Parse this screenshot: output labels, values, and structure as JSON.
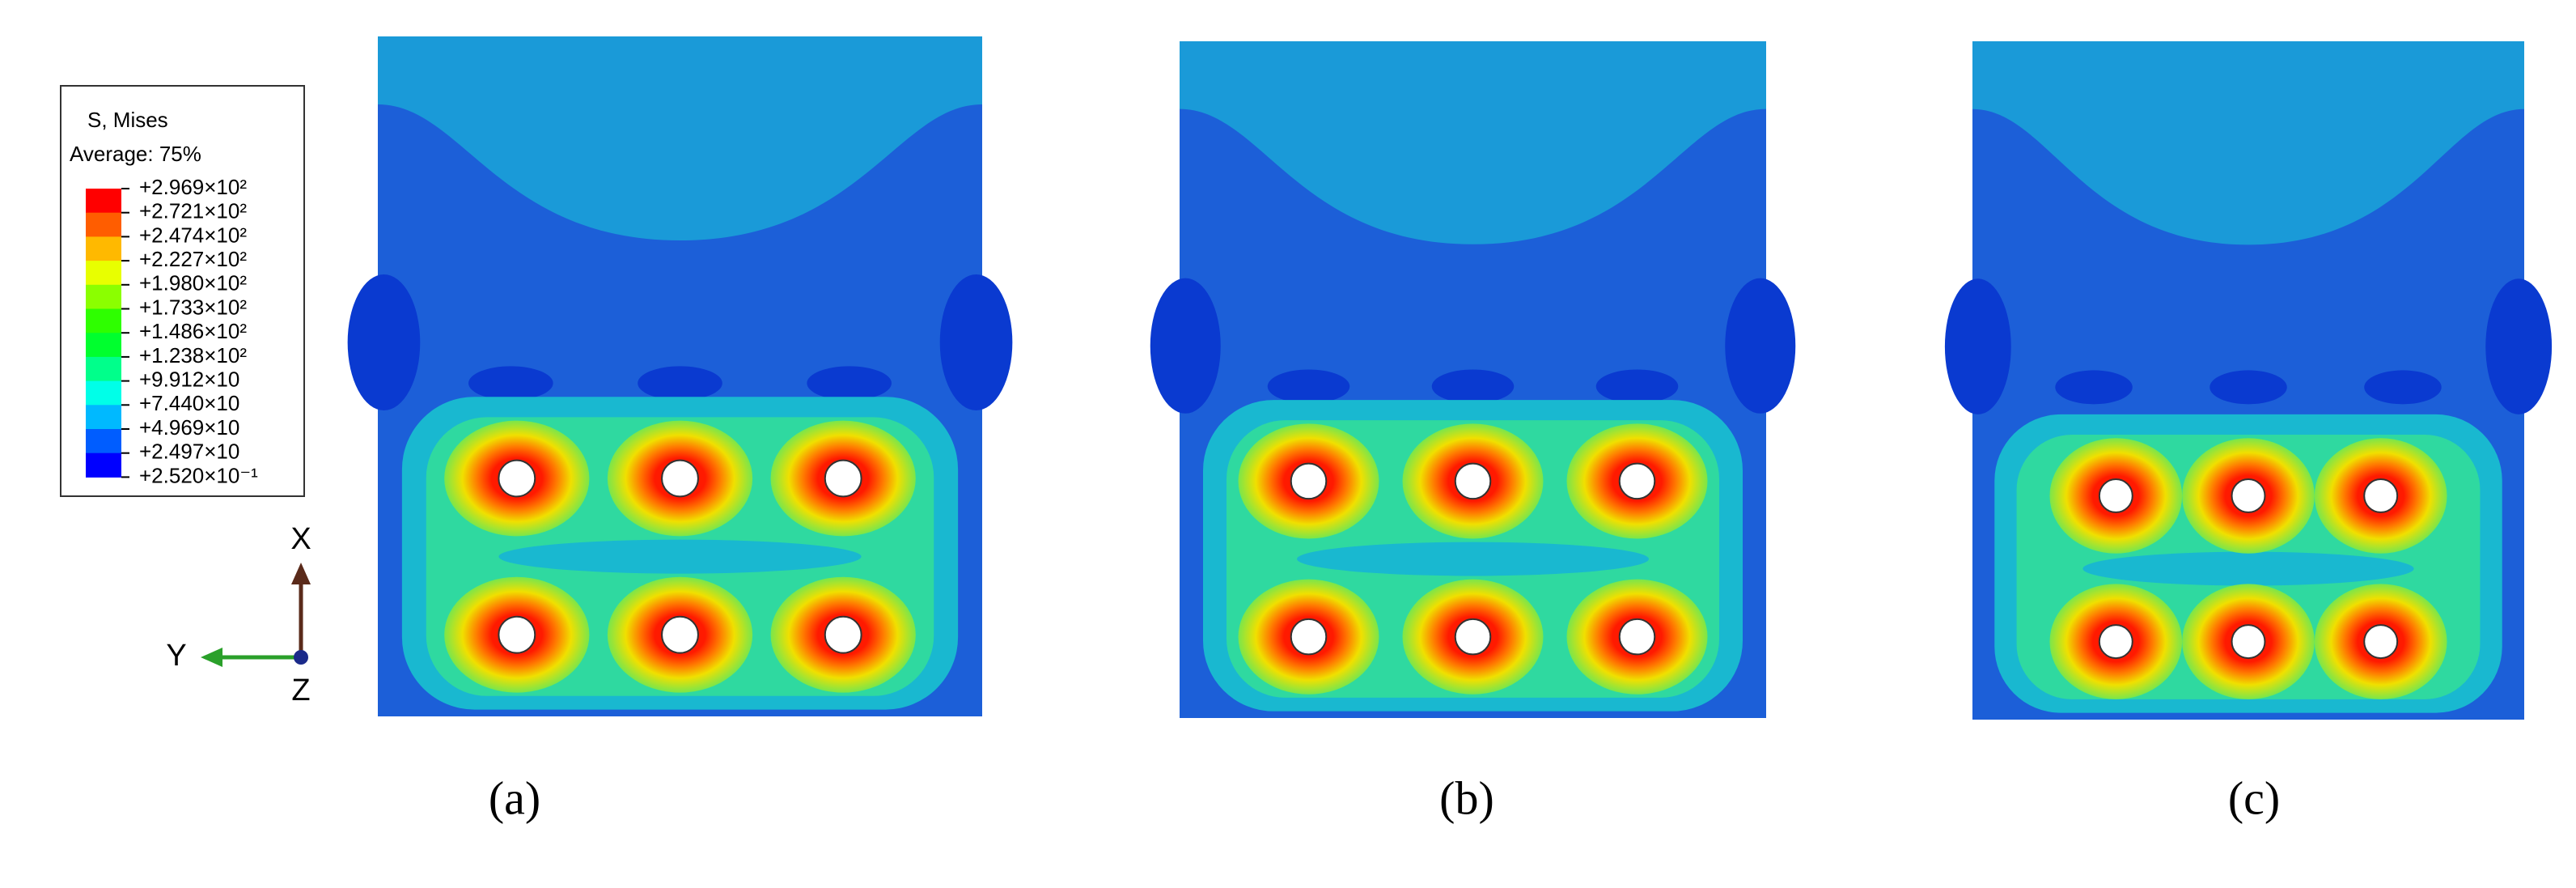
{
  "legend": {
    "title": "S, Mises",
    "subtitle": "Average: 75%",
    "labels": [
      "+2.969×10²",
      "+2.721×10²",
      "+2.474×10²",
      "+2.227×10²",
      "+1.980×10²",
      "+1.733×10²",
      "+1.486×10²",
      "+1.238×10²",
      "+9.912×10",
      "+7.440×10",
      "+4.969×10",
      "+2.497×10",
      "+2.520×10⁻¹"
    ],
    "colors": [
      "#ff0000",
      "#ff5d00",
      "#ffb900",
      "#e8ff00",
      "#8bff00",
      "#2eff00",
      "#00ff2e",
      "#00ff8b",
      "#00ffe8",
      "#00b9ff",
      "#005dff",
      "#0000ff"
    ]
  },
  "axes": {
    "x": "X",
    "y": "Y",
    "z": "Z"
  },
  "panels": [
    {
      "label": "(a)"
    },
    {
      "label": "(b)"
    },
    {
      "label": "(c)"
    }
  ]
}
